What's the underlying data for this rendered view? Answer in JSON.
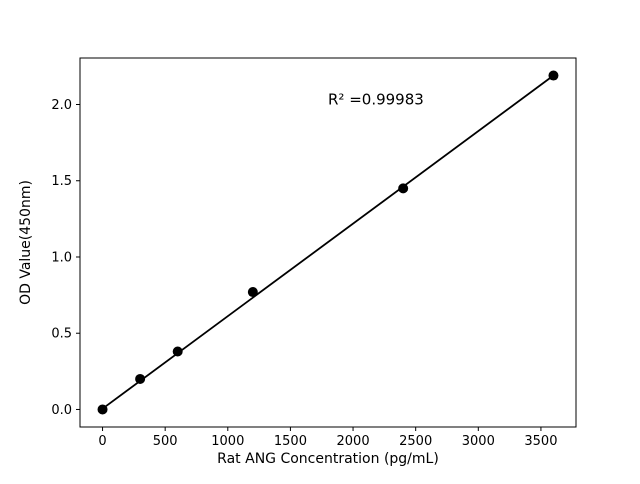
{
  "chart_data": {
    "type": "scatter",
    "title": "",
    "xlabel": "Rat ANG Concentration (pg/mL)",
    "ylabel": "OD Value(450nm)",
    "points": {
      "x": [
        0,
        300,
        600,
        1200,
        2400,
        3600
      ],
      "y": [
        0.0,
        0.2,
        0.38,
        0.77,
        1.45,
        2.19
      ]
    },
    "fit_line": {
      "x": [
        0,
        3600
      ],
      "y": [
        0.005,
        2.19
      ]
    },
    "annotation": {
      "text": "R² =0.99983",
      "x": 1800,
      "y": 2.0
    },
    "xlim": [
      -180,
      3780
    ],
    "ylim": [
      -0.115,
      2.305
    ],
    "xticks": [
      {
        "v": 0,
        "label": "0"
      },
      {
        "v": 500,
        "label": "500"
      },
      {
        "v": 1000,
        "label": "1000"
      },
      {
        "v": 1500,
        "label": "1500"
      },
      {
        "v": 2000,
        "label": "2000"
      },
      {
        "v": 2500,
        "label": "2500"
      },
      {
        "v": 3000,
        "label": "3000"
      },
      {
        "v": 3500,
        "label": "3500"
      }
    ],
    "yticks": [
      {
        "v": 0.0,
        "label": "0.0"
      },
      {
        "v": 0.5,
        "label": "0.5"
      },
      {
        "v": 1.0,
        "label": "1.0"
      },
      {
        "v": 1.5,
        "label": "1.5"
      },
      {
        "v": 2.0,
        "label": "2.0"
      }
    ],
    "grid": false,
    "legend": null,
    "marker_color": "#000000",
    "line_color": "#000000",
    "axis_color": "#000000",
    "background_color": "#ffffff"
  }
}
